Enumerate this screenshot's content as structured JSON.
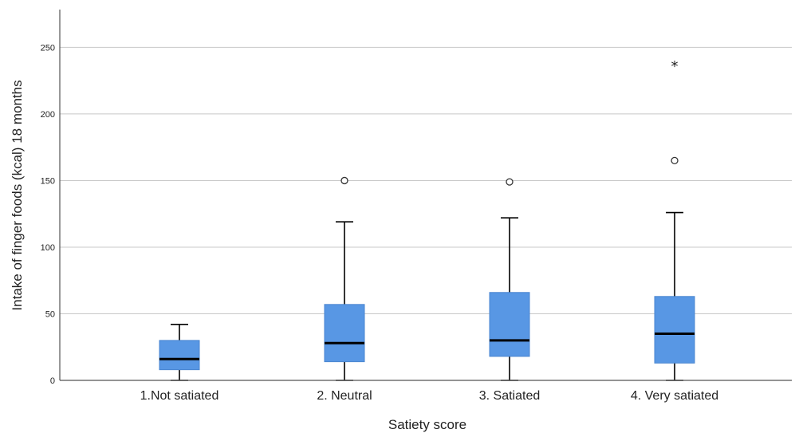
{
  "chart_data": {
    "type": "boxplot",
    "title": "",
    "xlabel": "Satiety score",
    "ylabel": "Intake of finger foods (kcal) 18 months",
    "ylim": [
      0,
      280
    ],
    "yticks": [
      0,
      50,
      100,
      150,
      200,
      250
    ],
    "grid": true,
    "box_color": "#5897e4",
    "median_color": "#000000",
    "categories": [
      "1.Not satiated",
      "2. Neutral",
      "3. Satiated",
      "4. Very satiated"
    ],
    "boxes": [
      {
        "whisker_low": 0,
        "q1": 8,
        "median": 16,
        "q3": 30,
        "whisker_high": 42,
        "outliers": [],
        "extremes": []
      },
      {
        "whisker_low": 0,
        "q1": 14,
        "median": 28,
        "q3": 57,
        "whisker_high": 119,
        "outliers": [
          150
        ],
        "extremes": []
      },
      {
        "whisker_low": 0,
        "q1": 18,
        "median": 30,
        "q3": 66,
        "whisker_high": 122,
        "outliers": [
          149
        ],
        "extremes": []
      },
      {
        "whisker_low": 0,
        "q1": 13,
        "median": 35,
        "q3": 63,
        "whisker_high": 126,
        "outliers": [
          165
        ],
        "extremes": [
          237
        ]
      }
    ]
  }
}
